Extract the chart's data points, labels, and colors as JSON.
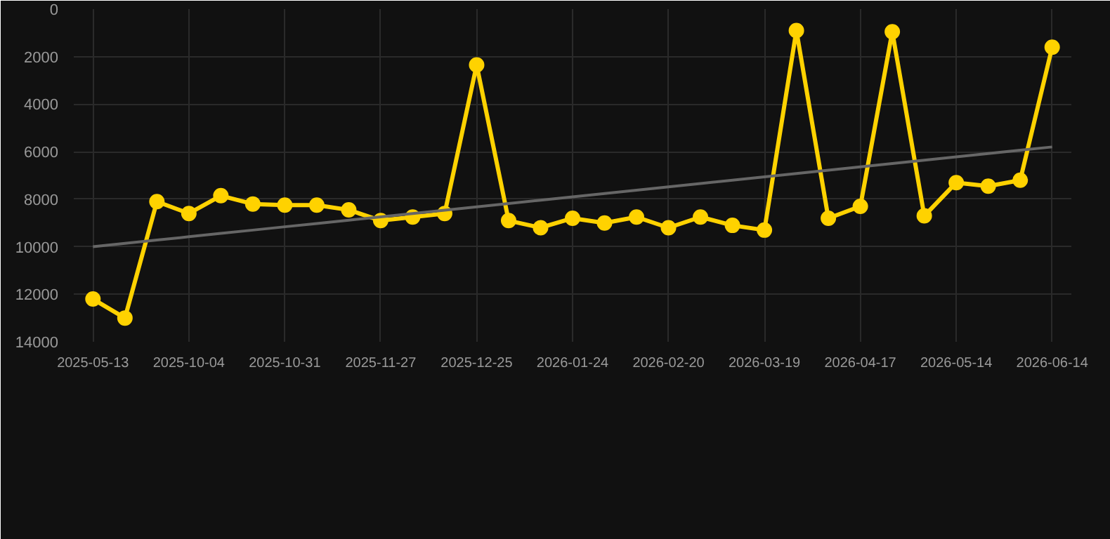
{
  "chart_data": {
    "type": "line",
    "categories": [
      "2025-05-13",
      null,
      null,
      "2025-10-04",
      null,
      null,
      "2025-10-31",
      null,
      null,
      "2025-11-27",
      null,
      null,
      "2025-12-25",
      null,
      null,
      "2026-01-24",
      null,
      null,
      "2026-02-20",
      null,
      null,
      "2026-03-19",
      null,
      null,
      "2026-04-17",
      null,
      null,
      "2026-05-14",
      null,
      null,
      "2026-06-14"
    ],
    "series": [
      {
        "color": "#ffd200",
        "marker": "circle",
        "values": [
          12200,
          13000,
          8100,
          8600,
          7850,
          8200,
          8250,
          8250,
          8450,
          8900,
          8750,
          8600,
          2350,
          8900,
          9200,
          8800,
          9000,
          8750,
          9200,
          8750,
          9100,
          9300,
          900,
          8800,
          8300,
          950,
          8700,
          7300,
          7450,
          7200,
          1600
        ]
      },
      {
        "type": "line",
        "color": "#666666",
        "marker": "none",
        "values": [
          10000,
          9860,
          9720,
          9580,
          9440,
          9300,
          9160,
          9020,
          8880,
          8740,
          8600,
          8460,
          8320,
          8180,
          8040,
          7900,
          7760,
          7620,
          7480,
          7340,
          7200,
          7060,
          6920,
          6780,
          6640,
          6500,
          6360,
          6220,
          6080,
          5940,
          5800
        ]
      }
    ],
    "ylim": [
      14000,
      0
    ],
    "yticks": [
      0,
      2000,
      4000,
      6000,
      8000,
      10000,
      12000,
      14000
    ],
    "grid": true
  }
}
